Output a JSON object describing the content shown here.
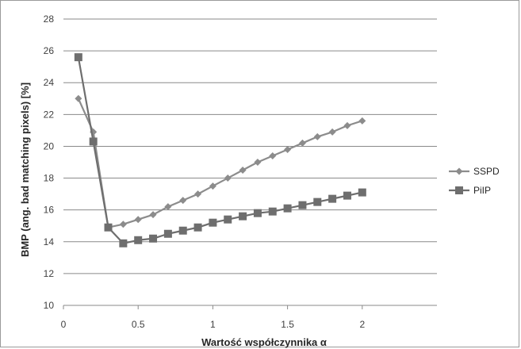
{
  "chart_data": {
    "type": "line",
    "title": "",
    "xlabel": "Wartość współczynnika α",
    "ylabel": "BMP (ang. bad matching pixels) [%]",
    "xlim": [
      0,
      2.5
    ],
    "ylim": [
      10,
      28
    ],
    "xticks": [
      0,
      0.5,
      1,
      1.5,
      2
    ],
    "xtick_labels": [
      "0",
      "0.5",
      "1",
      "1.5",
      "2"
    ],
    "yticks": [
      10,
      12,
      14,
      16,
      18,
      20,
      22,
      24,
      26,
      28
    ],
    "ytick_labels": [
      "10",
      "12",
      "14",
      "16",
      "18",
      "20",
      "22",
      "24",
      "26",
      "28"
    ],
    "grid": "horizontal",
    "legend_position": "right",
    "series": [
      {
        "name": "SSPD",
        "marker": "diamond",
        "color": "#8c8c8c",
        "x": [
          0.1,
          0.2,
          0.3,
          0.4,
          0.5,
          0.6,
          0.7,
          0.8,
          0.9,
          1.0,
          1.1,
          1.2,
          1.3,
          1.4,
          1.5,
          1.6,
          1.7,
          1.8,
          1.9,
          2.0
        ],
        "values": [
          23.0,
          20.9,
          14.9,
          15.1,
          15.4,
          15.7,
          16.2,
          16.6,
          17.0,
          17.5,
          18.0,
          18.5,
          19.0,
          19.4,
          19.8,
          20.2,
          20.6,
          20.9,
          21.3,
          21.6
        ]
      },
      {
        "name": "PiIP",
        "marker": "square",
        "color": "#6e6e6e",
        "x": [
          0.1,
          0.2,
          0.3,
          0.4,
          0.5,
          0.6,
          0.7,
          0.8,
          0.9,
          1.0,
          1.1,
          1.2,
          1.3,
          1.4,
          1.5,
          1.6,
          1.7,
          1.8,
          1.9,
          2.0
        ],
        "values": [
          25.6,
          20.3,
          14.9,
          13.9,
          14.1,
          14.2,
          14.5,
          14.7,
          14.9,
          15.2,
          15.4,
          15.6,
          15.8,
          15.9,
          16.1,
          16.3,
          16.5,
          16.7,
          16.9,
          17.1
        ]
      }
    ]
  }
}
